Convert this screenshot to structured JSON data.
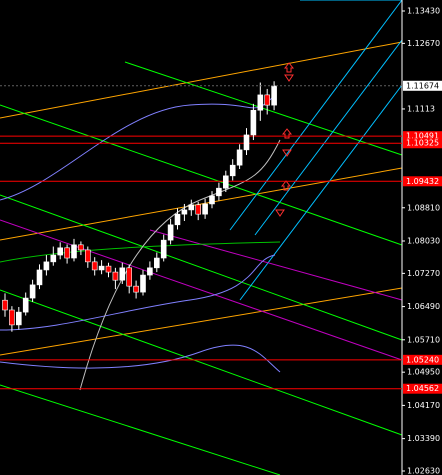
{
  "chart_data": {
    "type": "candlestick",
    "open": [
      1.0664,
      1.0641,
      1.0606,
      1.0636,
      1.0669,
      1.07,
      1.0735,
      1.0754,
      1.077,
      1.0787,
      1.0763,
      1.0794,
      1.0782,
      1.0754,
      1.0735,
      1.0744,
      1.073,
      1.0711,
      1.074,
      1.0697,
      1.0683,
      1.0723,
      1.074,
      1.0763,
      1.0805,
      1.0841,
      1.0866,
      1.0876,
      1.0888,
      1.0866,
      1.089,
      1.0909,
      1.0927,
      1.0956,
      1.0981,
      1.1017,
      1.1052,
      1.111,
      1.1146,
      1.1122
    ],
    "high": [
      1.068,
      1.065,
      1.0648,
      1.0682,
      1.0712,
      1.0748,
      1.077,
      1.079,
      1.08,
      1.0795,
      1.0808,
      1.0802,
      1.079,
      1.0765,
      1.0758,
      1.0752,
      1.074,
      1.0752,
      1.0748,
      1.071,
      1.0735,
      1.0755,
      1.0776,
      1.0818,
      1.0855,
      1.088,
      1.089,
      1.09,
      1.0895,
      1.0902,
      1.092,
      1.094,
      1.0968,
      1.0995,
      1.103,
      1.1068,
      1.1125,
      1.1175,
      1.116,
      1.1178
    ],
    "low": [
      1.0625,
      1.059,
      1.0595,
      1.0628,
      1.066,
      1.069,
      1.0722,
      1.0745,
      1.076,
      1.075,
      1.0755,
      1.077,
      1.074,
      1.0722,
      1.0725,
      1.0718,
      1.069,
      1.0702,
      1.068,
      1.0668,
      1.0675,
      1.0712,
      1.073,
      1.0755,
      1.0795,
      1.083,
      1.085,
      1.0862,
      1.0852,
      1.0855,
      1.088,
      1.0898,
      1.0918,
      1.0945,
      1.0972,
      1.1005,
      1.104,
      1.1085,
      1.11,
      1.111
    ],
    "close": [
      1.0641,
      1.0606,
      1.0636,
      1.0669,
      1.07,
      1.0735,
      1.0754,
      1.077,
      1.0787,
      1.0763,
      1.0794,
      1.0782,
      1.0754,
      1.0735,
      1.0744,
      1.073,
      1.0711,
      1.074,
      1.0697,
      1.0683,
      1.0723,
      1.074,
      1.0763,
      1.0805,
      1.0841,
      1.0866,
      1.0876,
      1.0888,
      1.0866,
      1.089,
      1.0909,
      1.0927,
      1.0956,
      1.0981,
      1.1017,
      1.1052,
      1.111,
      1.1146,
      1.1122,
      1.1167
    ],
    "up_color": "#ffffff",
    "down_color": "#ff0000",
    "ylim": [
      1.02536,
      1.13688
    ],
    "yticks": [
      {
        "value": 1.1343,
        "label": "1.13430"
      },
      {
        "value": 1.1267,
        "label": "1.12670"
      },
      1.1113,
      {
        "value": 1.0881,
        "label": "1.08810"
      },
      {
        "value": 1.0803,
        "label": "1.08030"
      },
      {
        "value": 1.0727,
        "label": "1.07270"
      },
      {
        "value": 1.0649,
        "label": "1.06490"
      },
      {
        "value": 1.0571,
        "label": "1.05710"
      },
      {
        "value": 1.0495,
        "label": "1.04950"
      },
      {
        "value": 1.0417,
        "label": "1.04170"
      },
      {
        "value": 1.0339,
        "label": "1.03390"
      },
      {
        "value": 1.0263,
        "label": "1.02630"
      }
    ],
    "levels": [
      1.10491,
      1.10325,
      1.09432,
      {
        "value": 1.0524,
        "label": "1.05240"
      },
      1.04562
    ],
    "level_color": "#ff0000",
    "last_price": 1.11674
  }
}
